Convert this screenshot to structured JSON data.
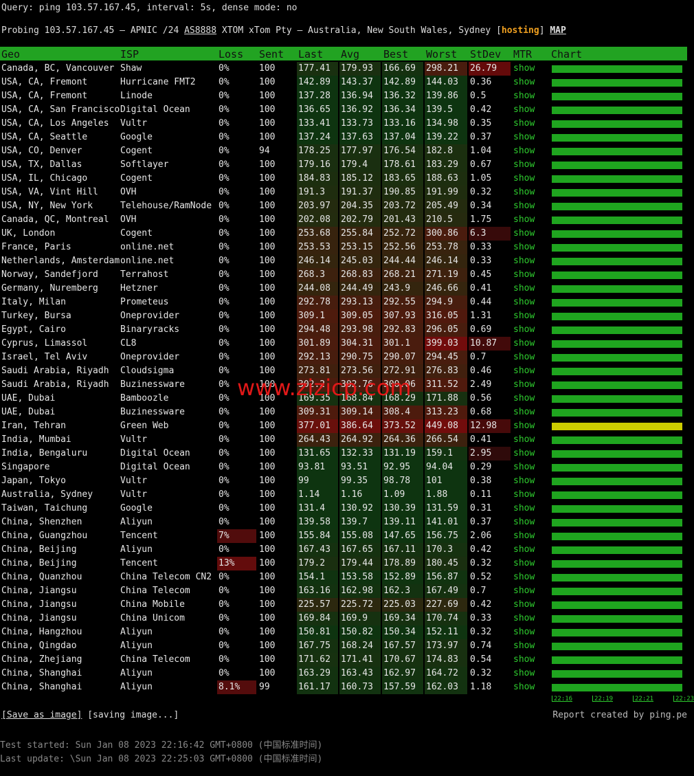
{
  "query": "Query: ping 103.57.167.45, interval: 5s, dense mode: no",
  "probing": {
    "prefix": "Probing 103.57.167.45 — APNIC /24 ",
    "asn": "AS8888",
    "middle": " XTOM xTom Pty — Australia, New South Wales, Sydney [",
    "tag": "hosting",
    "close": "]",
    "map": "MAP"
  },
  "table": {
    "headers": [
      "Geo",
      "ISP",
      "Loss",
      "Sent",
      "Last",
      "Avg",
      "Best",
      "Worst",
      "StDev",
      "MTR",
      "Chart"
    ],
    "mtr_link": "show",
    "rows": [
      [
        "Canada, BC, Vancouver",
        "Shaw",
        "0%",
        100,
        177.41,
        179.93,
        166.69,
        298.21,
        26.79
      ],
      [
        "USA, CA, Fremont",
        "Hurricane FMT2",
        "0%",
        100,
        142.89,
        143.37,
        142.89,
        144.03,
        0.36
      ],
      [
        "USA, CA, Fremont",
        "Linode",
        "0%",
        100,
        137.28,
        136.94,
        136.32,
        139.86,
        0.5
      ],
      [
        "USA, CA, San Francisco",
        "Digital Ocean",
        "0%",
        100,
        136.65,
        136.92,
        136.34,
        139.5,
        0.42
      ],
      [
        "USA, CA, Los Angeles",
        "Vultr",
        "0%",
        100,
        133.41,
        133.73,
        133.16,
        134.98,
        0.35
      ],
      [
        "USA, CA, Seattle",
        "Google",
        "0%",
        100,
        137.24,
        137.63,
        137.04,
        139.22,
        0.37
      ],
      [
        "USA, CO, Denver",
        "Cogent",
        "0%",
        94,
        178.25,
        177.97,
        176.54,
        182.8,
        1.04
      ],
      [
        "USA, TX, Dallas",
        "Softlayer",
        "0%",
        100,
        179.16,
        179.4,
        178.61,
        183.29,
        0.67
      ],
      [
        "USA, IL, Chicago",
        "Cogent",
        "0%",
        100,
        184.83,
        185.12,
        183.65,
        188.63,
        1.05
      ],
      [
        "USA, VA, Vint Hill",
        "OVH",
        "0%",
        100,
        191.3,
        191.37,
        190.85,
        191.99,
        0.32
      ],
      [
        "USA, NY, New York",
        "Telehouse/RamNode",
        "0%",
        100,
        203.97,
        204.35,
        203.72,
        205.49,
        0.34
      ],
      [
        "Canada, QC, Montreal",
        "OVH",
        "0%",
        100,
        202.08,
        202.79,
        201.43,
        210.5,
        1.75
      ],
      [
        "UK, London",
        "Cogent",
        "0%",
        100,
        253.68,
        255.84,
        252.72,
        300.86,
        6.3
      ],
      [
        "France, Paris",
        "online.net",
        "0%",
        100,
        253.53,
        253.15,
        252.56,
        253.78,
        0.33
      ],
      [
        "Netherlands, Amsterdam",
        "online.net",
        "0%",
        100,
        246.14,
        245.03,
        244.44,
        246.14,
        0.33
      ],
      [
        "Norway, Sandefjord",
        "Terrahost",
        "0%",
        100,
        268.3,
        268.83,
        268.21,
        271.19,
        0.45
      ],
      [
        "Germany, Nuremberg",
        "Hetzner",
        "0%",
        100,
        244.08,
        244.49,
        243.9,
        246.66,
        0.41
      ],
      [
        "Italy, Milan",
        "Prometeus",
        "0%",
        100,
        292.78,
        293.13,
        292.55,
        294.9,
        0.44
      ],
      [
        "Turkey, Bursa",
        "Oneprovider",
        "0%",
        100,
        309.1,
        309.05,
        307.93,
        316.05,
        1.31
      ],
      [
        "Egypt, Cairo",
        "Binaryracks",
        "0%",
        100,
        294.48,
        293.98,
        292.83,
        296.05,
        0.69
      ],
      [
        "Cyprus, Limassol",
        "CL8",
        "0%",
        100,
        301.89,
        304.31,
        301.1,
        399.03,
        10.87
      ],
      [
        "Israel, Tel Aviv",
        "Oneprovider",
        "0%",
        100,
        292.13,
        290.75,
        290.07,
        294.45,
        0.7
      ],
      [
        "Saudi Arabia, Riyadh",
        "Cloudsigma",
        "0%",
        100,
        273.81,
        273.56,
        272.91,
        276.83,
        0.46
      ],
      [
        "Saudi Arabia, Riyadh",
        "Buzinessware",
        "0%",
        100,
        302.2,
        302.76,
        300.06,
        311.52,
        2.49
      ],
      [
        "UAE, Dubai",
        "Bamboozle",
        "0%",
        100,
        169.35,
        168.84,
        168.29,
        171.88,
        0.56
      ],
      [
        "UAE, Dubai",
        "Buzinessware",
        "0%",
        100,
        309.31,
        309.14,
        308.4,
        313.23,
        0.68
      ],
      [
        "Iran, Tehran",
        "Green Web",
        "0%",
        100,
        377.01,
        386.64,
        373.52,
        449.08,
        12.98
      ],
      [
        "India, Mumbai",
        "Vultr",
        "0%",
        100,
        264.43,
        264.92,
        264.36,
        266.54,
        0.41
      ],
      [
        "India, Bengaluru",
        "Digital Ocean",
        "0%",
        100,
        131.65,
        132.33,
        131.19,
        159.1,
        2.95
      ],
      [
        "Singapore",
        "Digital Ocean",
        "0%",
        100,
        93.81,
        93.51,
        92.95,
        94.04,
        0.29
      ],
      [
        "Japan, Tokyo",
        "Vultr",
        "0%",
        100,
        99,
        99.35,
        98.78,
        101,
        0.38
      ],
      [
        "Australia, Sydney",
        "Vultr",
        "0%",
        100,
        1.14,
        1.16,
        1.09,
        1.88,
        0.11
      ],
      [
        "Taiwan, Taichung",
        "Google",
        "0%",
        100,
        131.4,
        130.92,
        130.39,
        131.59,
        0.31
      ],
      [
        "China, Shenzhen",
        "Aliyun",
        "0%",
        100,
        139.58,
        139.7,
        139.11,
        141.01,
        0.37
      ],
      [
        "China, Guangzhou",
        "Tencent",
        "7%",
        100,
        155.84,
        155.08,
        147.65,
        156.75,
        2.06
      ],
      [
        "China, Beijing",
        "Aliyun",
        "0%",
        100,
        167.43,
        167.65,
        167.11,
        170.3,
        0.42
      ],
      [
        "China, Beijing",
        "Tencent",
        "13%",
        100,
        179.2,
        179.44,
        178.89,
        180.45,
        0.32
      ],
      [
        "China, Quanzhou",
        "China Telecom CN2",
        "0%",
        100,
        154.1,
        153.58,
        152.89,
        156.87,
        0.52
      ],
      [
        "China, Jiangsu",
        "China Telecom",
        "0%",
        100,
        163.16,
        162.98,
        162.3,
        167.49,
        0.7
      ],
      [
        "China, Jiangsu",
        "China Mobile",
        "0%",
        100,
        225.57,
        225.72,
        225.03,
        227.69,
        0.42
      ],
      [
        "China, Jiangsu",
        "China Unicom",
        "0%",
        100,
        169.84,
        169.9,
        169.34,
        170.74,
        0.33
      ],
      [
        "China, Hangzhou",
        "Aliyun",
        "0%",
        100,
        150.81,
        150.82,
        150.34,
        152.11,
        0.32
      ],
      [
        "China, Qingdao",
        "Aliyun",
        "0%",
        100,
        167.75,
        168.24,
        167.57,
        173.97,
        0.74
      ],
      [
        "China, Zhejiang",
        "China Telecom",
        "0%",
        100,
        171.62,
        171.41,
        170.67,
        174.83,
        0.54
      ],
      [
        "China, Shanghai",
        "Aliyun",
        "0%",
        100,
        163.29,
        163.43,
        162.97,
        164.72,
        0.32
      ],
      [
        "China, Shanghai",
        "Aliyun",
        "8.1%",
        99,
        161.17,
        160.73,
        157.59,
        162.03,
        1.18
      ]
    ],
    "chart_times": [
      "22:16",
      "22:19",
      "22:21",
      "22:23"
    ]
  },
  "watermark": "www.zizicp.com",
  "footer": {
    "save": "[Save as image]",
    "saving": " [saving image...]",
    "report": "Report created by ping.pe",
    "started": "Test started: Sun Jan 08 2023 22:16:42 GMT+0800 (中国标准时间)",
    "updated": "Last update: \\Sun Jan 08 2023 22:25:03 GMT+0800 (中国标准时间)"
  }
}
